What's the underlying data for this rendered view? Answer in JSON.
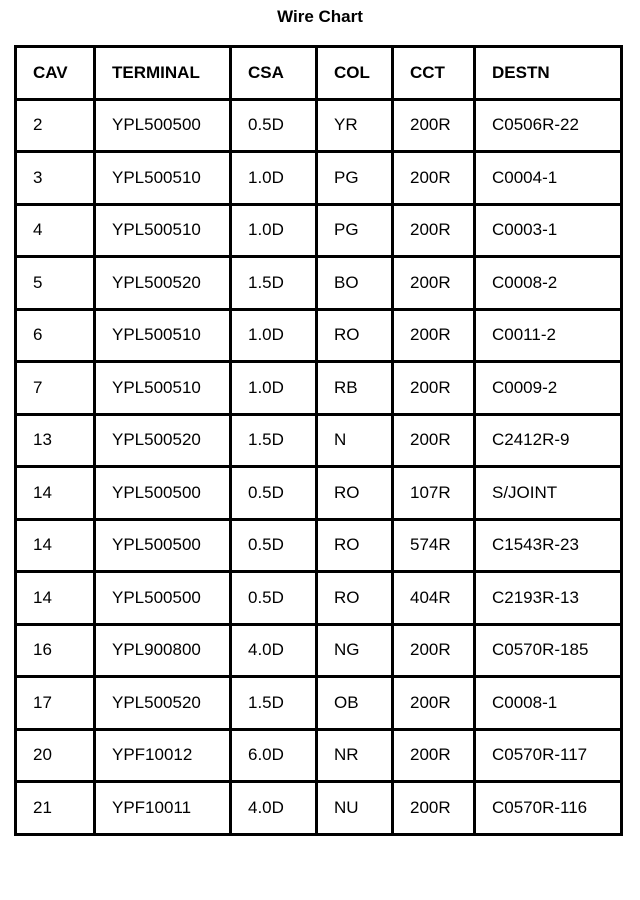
{
  "title": "Wire Chart",
  "headers": [
    "CAV",
    "TERMINAL",
    "CSA",
    "COL",
    "CCT",
    "DESTN"
  ],
  "rows": [
    [
      "2",
      "YPL500500",
      "0.5D",
      "YR",
      "200R",
      "C0506R-22"
    ],
    [
      "3",
      "YPL500510",
      "1.0D",
      "PG",
      "200R",
      "C0004-1"
    ],
    [
      "4",
      "YPL500510",
      "1.0D",
      "PG",
      "200R",
      "C0003-1"
    ],
    [
      "5",
      "YPL500520",
      "1.5D",
      "BO",
      "200R",
      "C0008-2"
    ],
    [
      "6",
      "YPL500510",
      "1.0D",
      "RO",
      "200R",
      "C0011-2"
    ],
    [
      "7",
      "YPL500510",
      "1.0D",
      "RB",
      "200R",
      "C0009-2"
    ],
    [
      "13",
      "YPL500520",
      "1.5D",
      "N",
      "200R",
      "C2412R-9"
    ],
    [
      "14",
      "YPL500500",
      "0.5D",
      "RO",
      "107R",
      "S/JOINT"
    ],
    [
      "14",
      "YPL500500",
      "0.5D",
      "RO",
      "574R",
      "C1543R-23"
    ],
    [
      "14",
      "YPL500500",
      "0.5D",
      "RO",
      "404R",
      "C2193R-13"
    ],
    [
      "16",
      "YPL900800",
      "4.0D",
      "NG",
      "200R",
      "C0570R-185"
    ],
    [
      "17",
      "YPL500520",
      "1.5D",
      "OB",
      "200R",
      "C0008-1"
    ],
    [
      "20",
      "YPF10012",
      "6.0D",
      "NR",
      "200R",
      "C0570R-117"
    ],
    [
      "21",
      "YPF10011",
      "4.0D",
      "NU",
      "200R",
      "C0570R-116"
    ]
  ]
}
